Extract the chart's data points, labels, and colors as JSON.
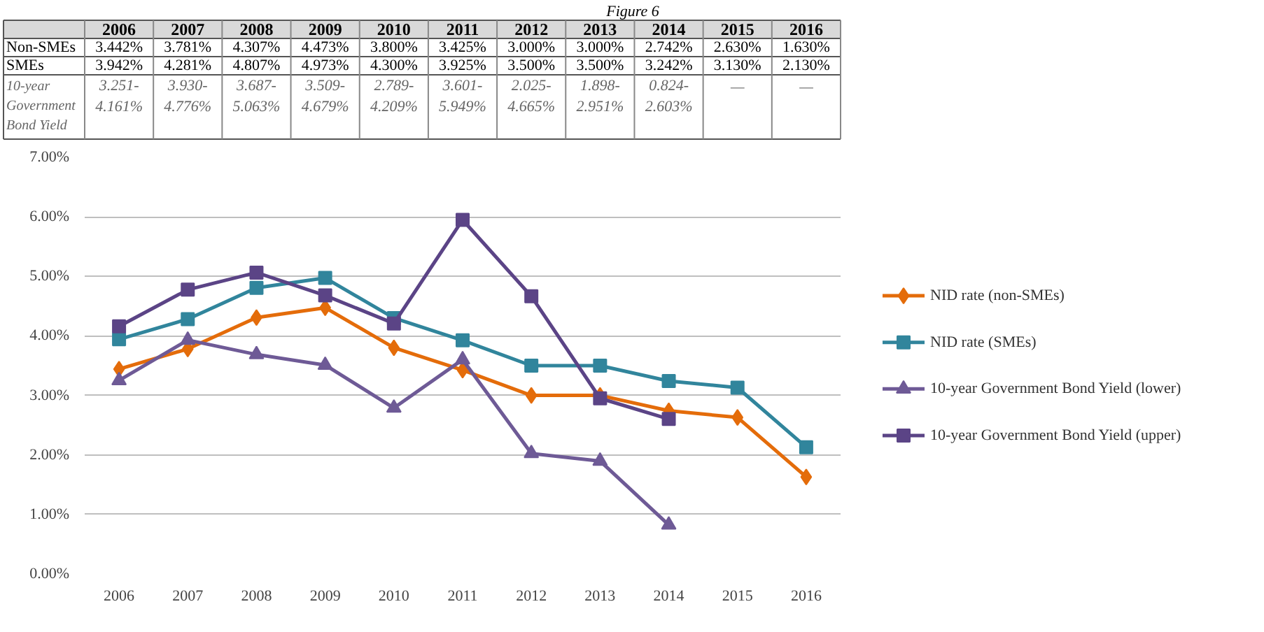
{
  "chart_data": {
    "type": "line",
    "title": "Figure 6",
    "categories": [
      "2006",
      "2007",
      "2008",
      "2009",
      "2010",
      "2011",
      "2012",
      "2013",
      "2014",
      "2015",
      "2016"
    ],
    "annotations": [
      "Non-SMEs",
      "SMEs",
      "10-year Government Bond Yield"
    ],
    "series": [
      {
        "name": "NID rate (non-SMEs)",
        "color": "#e46c0a",
        "marker": "diamond",
        "values": [
          3.442,
          3.781,
          4.307,
          4.473,
          3.8,
          3.425,
          3.0,
          3.0,
          2.742,
          2.63,
          1.63
        ],
        "value_labels": [
          "3.442%",
          "3.781%",
          "4.307%",
          "4.473%",
          "3.800%",
          "3.425%",
          "3.000%",
          "3.000%",
          "2.742%",
          "2.630%",
          "1.630%"
        ]
      },
      {
        "name": "NID rate (SMEs)",
        "color": "#31859c",
        "marker": "square",
        "values": [
          3.942,
          4.281,
          4.807,
          4.973,
          4.3,
          3.925,
          3.5,
          3.5,
          3.242,
          3.13,
          2.13
        ],
        "value_labels": [
          "3.942%",
          "4.281%",
          "4.807%",
          "4.973%",
          "4.300%",
          "3.925%",
          "3.500%",
          "3.500%",
          "3.242%",
          "3.130%",
          "2.130%"
        ]
      },
      {
        "name": "10-year Government Bond Yield (lower)",
        "color": "#6e5a96",
        "marker": "triangle",
        "values": [
          3.251,
          3.93,
          3.687,
          3.509,
          2.789,
          3.601,
          2.025,
          1.898,
          0.824,
          null,
          null
        ],
        "value_labels": [
          "3.251-",
          "3.930-",
          "3.687-",
          "3.509-",
          "2.789-",
          "3.601-",
          "2.025-",
          "1.898-",
          "0.824-",
          "—",
          "—"
        ]
      },
      {
        "name": "10-year Government Bond Yield (upper)",
        "color": "#5b4486",
        "marker": "square",
        "values": [
          4.161,
          4.776,
          5.063,
          4.679,
          4.209,
          5.949,
          4.665,
          2.951,
          2.603,
          null,
          null
        ],
        "value_labels": [
          "4.161%",
          "4.776%",
          "5.063%",
          "4.679%",
          "4.209%",
          "5.949%",
          "4.665%",
          "2.951%",
          "2.603%",
          null,
          null
        ]
      }
    ],
    "ylim": [
      0,
      7
    ],
    "yticks": [
      {
        "value": 0,
        "label": "0.00%"
      },
      {
        "value": 1,
        "label": "1.00%"
      },
      {
        "value": 2,
        "label": "2.00%"
      },
      {
        "value": 3,
        "label": "3.00%"
      },
      {
        "value": 4,
        "label": "4.00%"
      },
      {
        "value": 5,
        "label": "5.00%"
      },
      {
        "value": 6,
        "label": "6.00%"
      },
      {
        "value": 7,
        "label": "7.00%"
      }
    ],
    "grid": "y",
    "legend": "right",
    "line_style": "solid"
  }
}
